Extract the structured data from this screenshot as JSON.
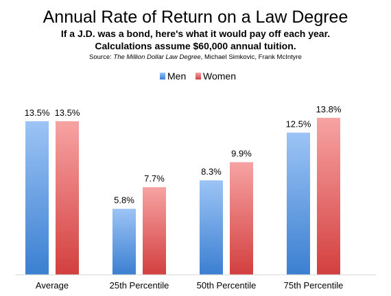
{
  "header": {
    "title": "Annual Rate of Return on a Law Degree",
    "subtitle_1": "If a J.D. was a bond, here's what it would pay off each year.",
    "subtitle_2": "Calculations assume $60,000 annual tuition.",
    "source_prefix": "Source: ",
    "source_book": "The Million Dollar Law Degree",
    "source_authors": ", Michael Simkovic, Frank McIntyre"
  },
  "colors": {
    "men_top": "#9cc4f5",
    "men_bottom": "#3b7fd1",
    "women_top": "#f7a3a3",
    "women_bottom": "#d33f3f"
  },
  "chart_data": {
    "type": "bar",
    "title": "Annual Rate of Return on a Law Degree",
    "categories": [
      "Average",
      "25th Percentile",
      "50th Percentile",
      "75th Percentile"
    ],
    "series": [
      {
        "name": "Men",
        "values": [
          13.5,
          5.8,
          8.3,
          12.5
        ],
        "labels": [
          "13.5%",
          "5.8%",
          "8.3%",
          "12.5%"
        ]
      },
      {
        "name": "Women",
        "values": [
          13.5,
          7.7,
          9.9,
          13.8
        ],
        "labels": [
          "13.5%",
          "7.7%",
          "9.9%",
          "13.8%"
        ]
      }
    ],
    "ylim": [
      0,
      15
    ],
    "grid": false,
    "legend_position": "top-center"
  }
}
